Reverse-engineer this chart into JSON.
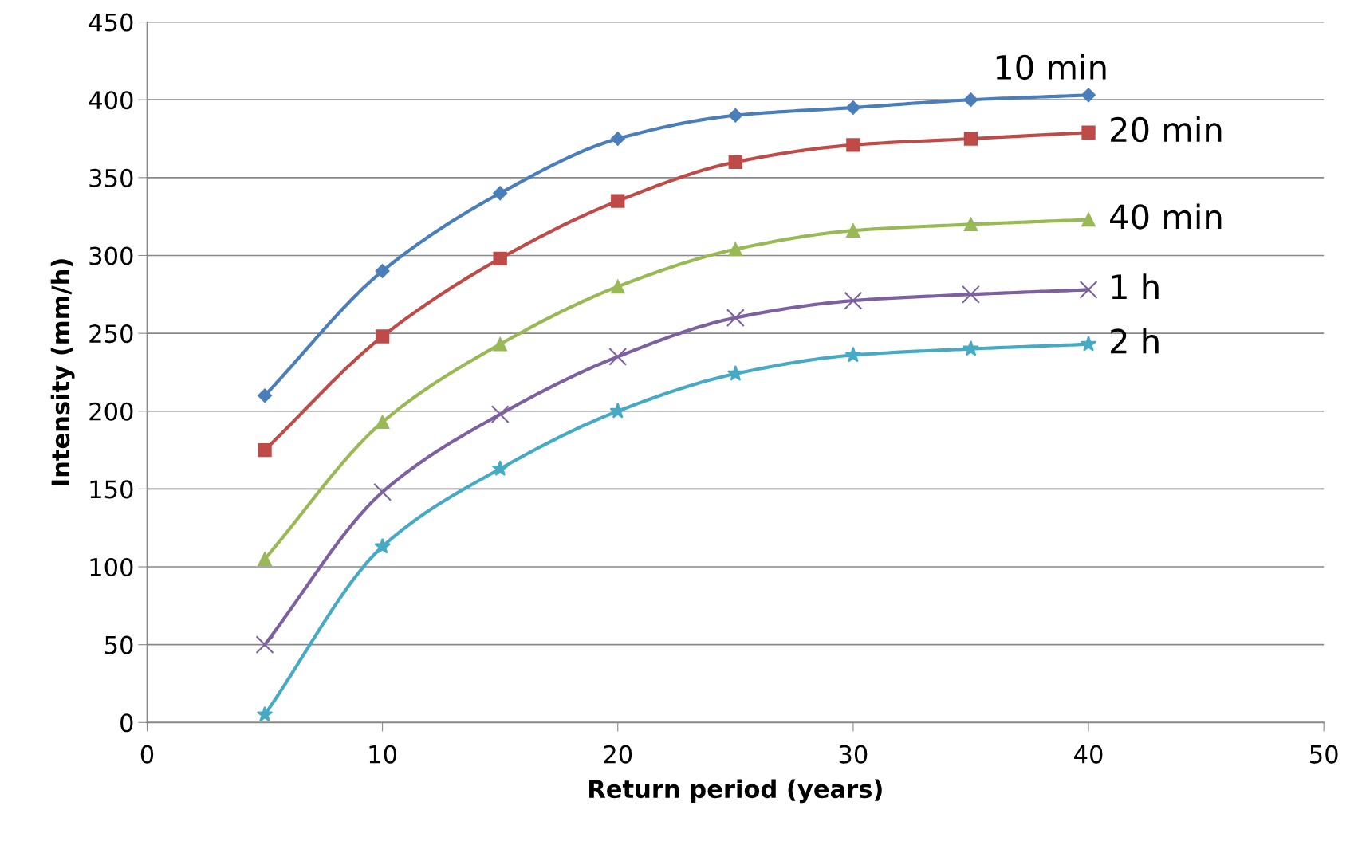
{
  "chart_data": {
    "type": "line",
    "xlabel": "Return period (years)",
    "ylabel": "Intensity (mm/h)",
    "x": [
      5,
      10,
      15,
      20,
      25,
      30,
      35,
      40
    ],
    "xlim": [
      0,
      50
    ],
    "xticks": [
      0,
      10,
      20,
      30,
      40,
      50
    ],
    "ylim": [
      0,
      450
    ],
    "yticks": [
      0,
      50,
      100,
      150,
      200,
      250,
      300,
      350,
      400,
      450
    ],
    "grid": "y",
    "legend": false,
    "series": [
      {
        "name": "10 min",
        "color": "#4a7ebb",
        "marker": "diamond",
        "values": [
          210,
          290,
          340,
          375,
          390,
          395,
          400,
          403
        ]
      },
      {
        "name": "20 min",
        "color": "#be4b48",
        "marker": "square",
        "values": [
          175,
          248,
          298,
          335,
          360,
          371,
          375,
          379
        ]
      },
      {
        "name": "40 min",
        "color": "#98b954",
        "marker": "triangle",
        "values": [
          105,
          193,
          243,
          280,
          304,
          316,
          320,
          323
        ]
      },
      {
        "name": "1 h",
        "color": "#7d60a0",
        "marker": "cross",
        "values": [
          50,
          148,
          198,
          235,
          260,
          271,
          275,
          278
        ]
      },
      {
        "name": "2 h",
        "color": "#46aac5",
        "marker": "star",
        "values": [
          5,
          113,
          163,
          200,
          224,
          236,
          240,
          243
        ]
      }
    ]
  }
}
